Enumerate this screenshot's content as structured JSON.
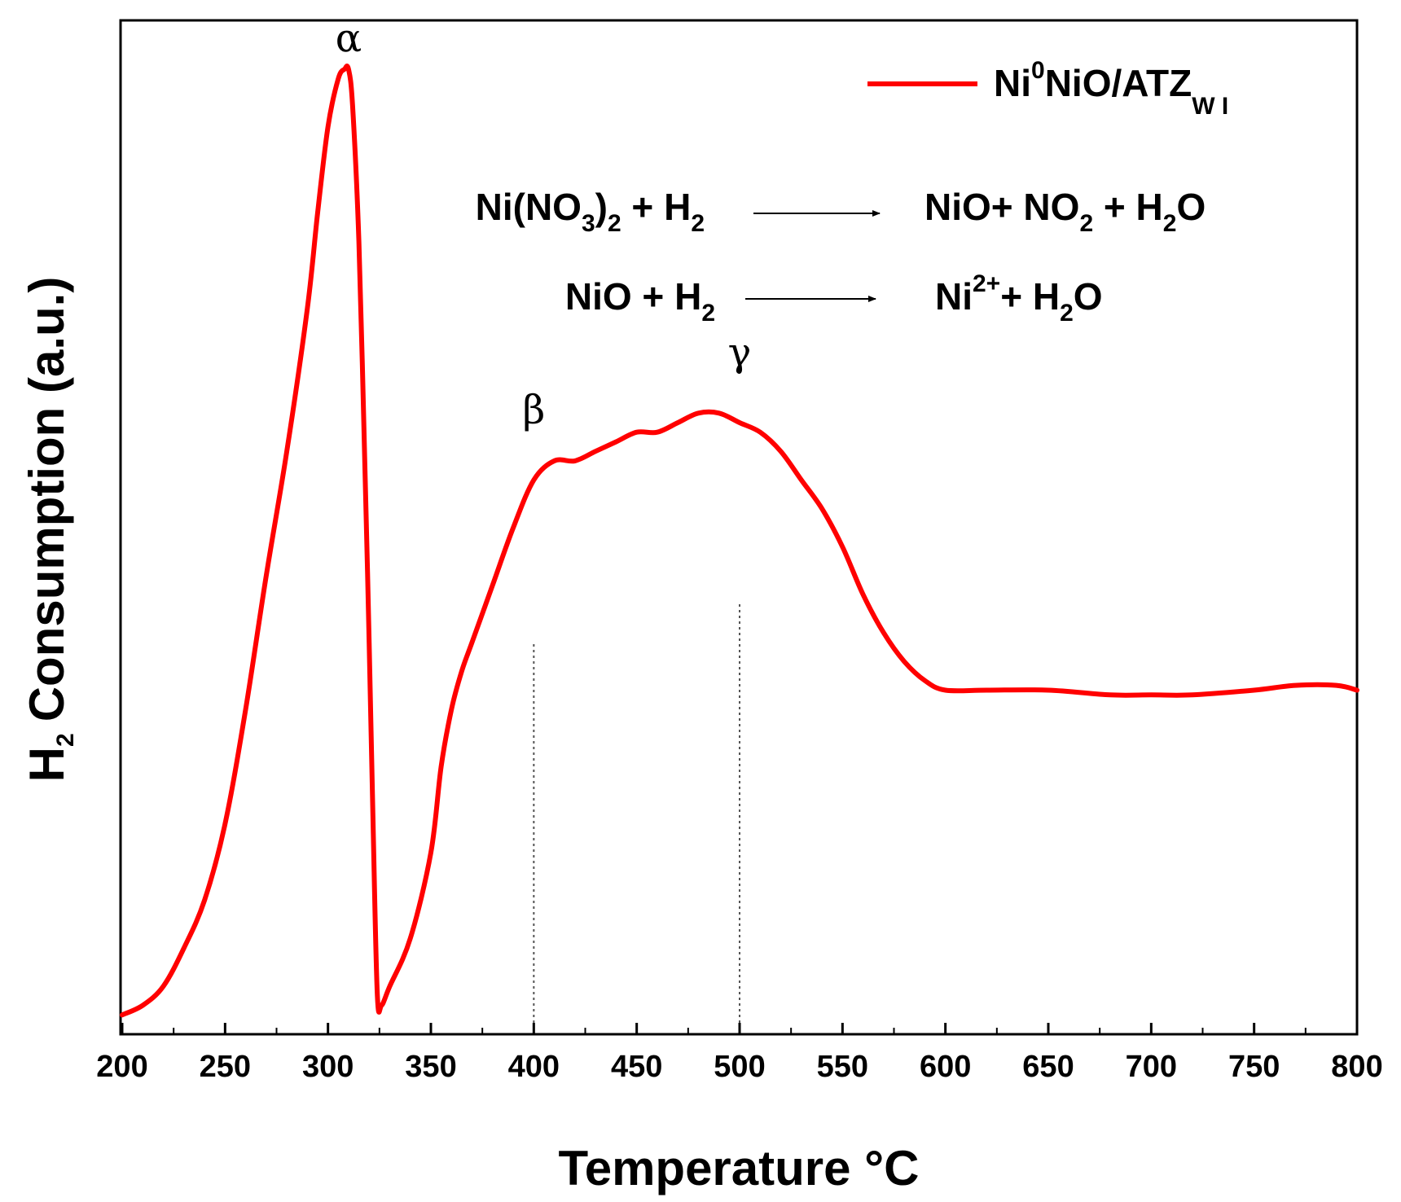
{
  "chart_data": {
    "type": "line",
    "xlabel": "Temperature °C",
    "ylabel": "Consumption (a.u.)",
    "ylabel_prefix": "H",
    "ylabel_sub": "2",
    "xlim": [
      200,
      800
    ],
    "x_ticks": [
      200,
      250,
      300,
      350,
      400,
      450,
      500,
      550,
      600,
      650,
      700,
      750,
      800
    ],
    "ylim": [
      0,
      1
    ],
    "y_ticks_shown": false,
    "grid": false,
    "legend_position": "top-right",
    "colors": {
      "series": "#ff0000",
      "axes": "#000000",
      "guides": "#555555"
    },
    "legend": {
      "main": "Ni",
      "sup": "0",
      "rest": "NiO/ATZ",
      "sub": "W I"
    },
    "series": [
      {
        "name": "Ni0NiO/ATZW I",
        "x": [
          200,
          210,
          220,
          230,
          240,
          250,
          260,
          270,
          280,
          290,
          295,
          300,
          305,
          308,
          310,
          312,
          315,
          318,
          320,
          322,
          324,
          326,
          330,
          340,
          350,
          355,
          360,
          365,
          370,
          380,
          390,
          400,
          410,
          420,
          430,
          440,
          450,
          460,
          470,
          480,
          490,
          500,
          510,
          520,
          530,
          540,
          550,
          560,
          570,
          580,
          590,
          600,
          620,
          650,
          680,
          700,
          720,
          750,
          770,
          790,
          800
        ],
        "y": [
          0.01,
          0.02,
          0.04,
          0.08,
          0.13,
          0.21,
          0.33,
          0.47,
          0.6,
          0.75,
          0.85,
          0.94,
          0.99,
          1.0,
          1.0,
          0.96,
          0.82,
          0.58,
          0.4,
          0.2,
          0.03,
          0.02,
          0.04,
          0.09,
          0.18,
          0.27,
          0.33,
          0.37,
          0.4,
          0.46,
          0.52,
          0.57,
          0.59,
          0.59,
          0.6,
          0.61,
          0.62,
          0.62,
          0.63,
          0.64,
          0.64,
          0.63,
          0.62,
          0.6,
          0.57,
          0.54,
          0.5,
          0.45,
          0.41,
          0.38,
          0.36,
          0.35,
          0.35,
          0.35,
          0.345,
          0.345,
          0.345,
          0.35,
          0.355,
          0.355,
          0.35
        ]
      }
    ],
    "annotations": {
      "peaks": [
        {
          "label": "α",
          "x": 310,
          "y": 1.0
        },
        {
          "label": "β",
          "x": 400,
          "y": 0.57
        },
        {
          "label": "γ",
          "x": 500,
          "y": 0.63
        }
      ],
      "guide_lines_x": [
        400,
        500
      ]
    },
    "equations": [
      {
        "reactants": [
          {
            "t": "Ni(NO"
          },
          {
            "t": "3",
            "sub": true
          },
          {
            "t": ")"
          },
          {
            "t": "2",
            "sub": true
          },
          {
            "t": " + H"
          },
          {
            "t": "2",
            "sub": true
          }
        ],
        "products": [
          {
            "t": "NiO+ NO"
          },
          {
            "t": "2",
            "sub": true
          },
          {
            "t": " + H"
          },
          {
            "t": "2",
            "sub": true
          },
          {
            "t": "O"
          }
        ]
      },
      {
        "reactants": [
          {
            "t": "NiO + H"
          },
          {
            "t": "2",
            "sub": true
          }
        ],
        "products": [
          {
            "t": "Ni"
          },
          {
            "t": "2+",
            "sup": true
          },
          {
            "t": "+ H"
          },
          {
            "t": "2",
            "sub": true
          },
          {
            "t": "O"
          }
        ]
      }
    ]
  }
}
